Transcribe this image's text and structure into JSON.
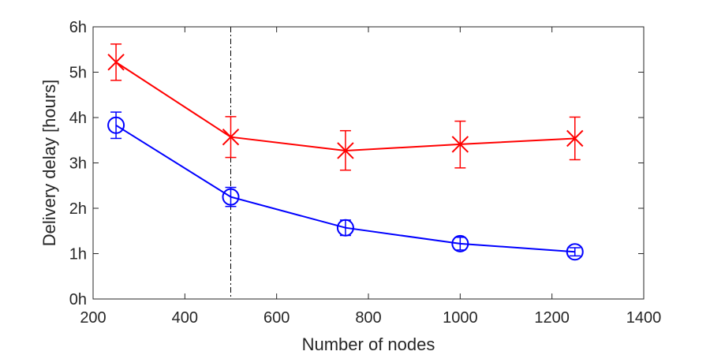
{
  "chart_data": {
    "type": "line",
    "title": "",
    "xlabel": "Number of nodes",
    "ylabel": "Delivery delay [hours]",
    "xlim": [
      200,
      1400
    ],
    "ylim": [
      0,
      6
    ],
    "x_ticks": [
      200,
      400,
      600,
      800,
      1000,
      1200,
      1400
    ],
    "x_tick_labels": [
      "200",
      "400",
      "600",
      "800",
      "1000",
      "1200",
      "1400"
    ],
    "y_ticks": [
      0,
      1,
      2,
      3,
      4,
      5,
      6
    ],
    "y_tick_labels": [
      "0h",
      "1h",
      "2h",
      "3h",
      "4h",
      "5h",
      "6h"
    ],
    "grid": false,
    "reference_line": {
      "x": 500,
      "style": "dash-dot",
      "color": "#000000"
    },
    "series": [
      {
        "color": "#ff0000",
        "marker": "x",
        "x": [
          250,
          500,
          750,
          1000,
          1250
        ],
        "y": [
          5.22,
          3.57,
          3.27,
          3.41,
          3.54
        ],
        "err_low": [
          4.82,
          3.12,
          2.84,
          2.89,
          3.07
        ],
        "err_high": [
          5.62,
          4.02,
          3.71,
          3.92,
          4.01
        ]
      },
      {
        "color": "#0000ff",
        "marker": "o",
        "x": [
          250,
          500,
          750,
          1000,
          1250
        ],
        "y": [
          3.83,
          2.25,
          1.57,
          1.22,
          1.04
        ],
        "err_low": [
          3.54,
          2.04,
          1.4,
          1.08,
          0.95
        ],
        "err_high": [
          4.12,
          2.46,
          1.74,
          1.36,
          1.13
        ]
      }
    ]
  }
}
